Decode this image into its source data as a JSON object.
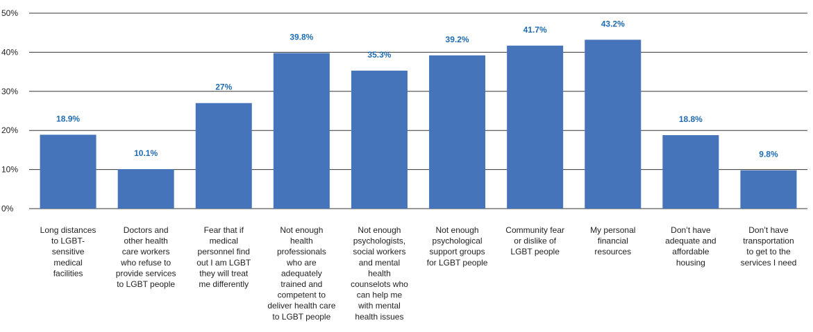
{
  "chart_data": {
    "type": "bar",
    "categories": [
      [
        "Long distances",
        "to LGBT-",
        "sensitive",
        "medical",
        "facilities"
      ],
      [
        "Doctors and",
        "other health",
        "care workers",
        "who refuse to",
        "provide services",
        "to LGBT people"
      ],
      [
        "Fear that if",
        "medical",
        "personnel find",
        "out I am LGBT",
        "they will treat",
        "me differently"
      ],
      [
        "Not enough",
        "health",
        "professionals",
        "who are",
        "adequately",
        "trained and",
        "competent to",
        "deliver health care",
        "to LGBT people"
      ],
      [
        "Not enough",
        "psychologists,",
        "social workers",
        "and mental",
        "health",
        "counselots who",
        "can help me",
        "with mental",
        "health issues"
      ],
      [
        "Not enough",
        "psychological",
        "support groups",
        "for LGBT people"
      ],
      [
        "Community fear",
        "or dislike of",
        "LGBT people"
      ],
      [
        "My personal",
        "financial",
        "resources"
      ],
      [
        "Don’t have",
        "adequate and",
        "affordable",
        "housing"
      ],
      [
        "Don’t have",
        "transportation",
        "to get to the",
        "services I need"
      ]
    ],
    "values": [
      18.9,
      10.1,
      27,
      39.8,
      35.3,
      39.2,
      41.7,
      43.2,
      18.8,
      9.8
    ],
    "data_labels": [
      "18.9%",
      "10.1%",
      "27%",
      "39.8%",
      "35.3%",
      "39.2%",
      "41.7%",
      "43.2%",
      "18.8%",
      "9.8%"
    ],
    "y_ticks": [
      {
        "value": 0,
        "label": "0%"
      },
      {
        "value": 10,
        "label": "10%"
      },
      {
        "value": 20,
        "label": "20%"
      },
      {
        "value": 30,
        "label": "30%"
      },
      {
        "value": 40,
        "label": "40%"
      },
      {
        "value": 50,
        "label": "50%"
      }
    ],
    "ylim": [
      0,
      50
    ],
    "grid": true,
    "legend": "none",
    "colors": {
      "bar": "#4674BA",
      "label": "#1F6BB0",
      "grid": "#333333"
    }
  }
}
